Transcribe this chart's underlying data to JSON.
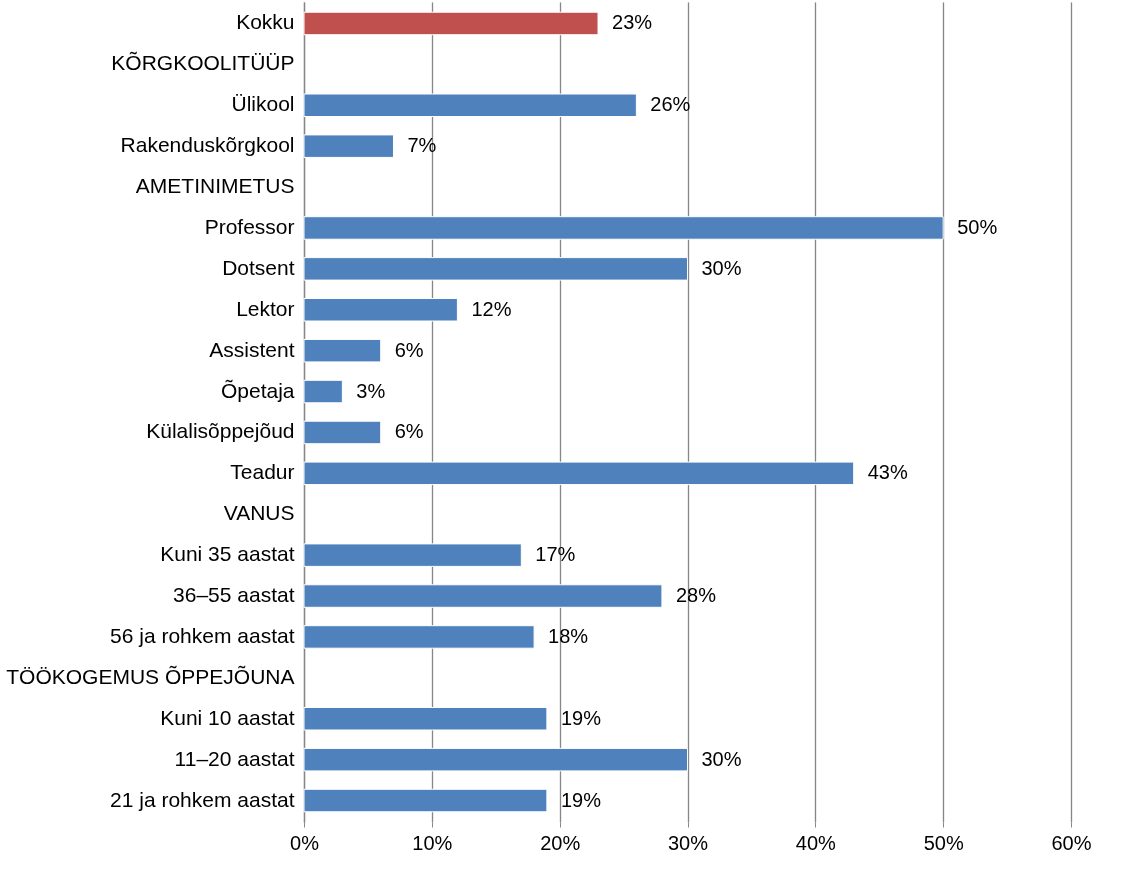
{
  "chart_data": {
    "type": "bar",
    "orientation": "horizontal",
    "categories": [
      "Kokku",
      "KÕRGKOOLITÜÜP",
      "Ülikool",
      "Rakenduskõrgkool",
      "AMETINIMETUS",
      "Professor",
      "Dotsent",
      "Lektor",
      "Assistent",
      "Õpetaja",
      "Külalisõppejõud",
      "Teadur",
      "VANUS",
      "Kuni 35 aastat",
      "36–55 aastat",
      "56 ja rohkem aastat",
      "TÖÖKOGEMUS ÕPPEJÕUNA",
      "Kuni 10 aastat",
      "11–20 aastat",
      "21 ja rohkem aastat"
    ],
    "values": [
      23,
      null,
      26,
      7,
      null,
      50,
      30,
      12,
      6,
      3,
      6,
      43,
      null,
      17,
      28,
      18,
      null,
      19,
      30,
      19
    ],
    "value_labels": [
      "23%",
      null,
      "26%",
      "7%",
      null,
      "50%",
      "30%",
      "12%",
      "6%",
      "3%",
      "6%",
      "43%",
      null,
      "17%",
      "28%",
      "18%",
      null,
      "19%",
      "30%",
      "19%"
    ],
    "colors": [
      "#c0504d",
      null,
      "#4f81bd",
      "#4f81bd",
      null,
      "#4f81bd",
      "#4f81bd",
      "#4f81bd",
      "#4f81bd",
      "#4f81bd",
      "#4f81bd",
      "#4f81bd",
      null,
      "#4f81bd",
      "#4f81bd",
      "#4f81bd",
      null,
      "#4f81bd",
      "#4f81bd",
      "#4f81bd"
    ],
    "xlim": [
      0,
      60
    ],
    "xticks": [
      {
        "value": 0,
        "label": "0%"
      },
      {
        "value": 10,
        "label": "10%"
      },
      {
        "value": 20,
        "label": "20%"
      },
      {
        "value": 30,
        "label": "30%"
      },
      {
        "value": 40,
        "label": "40%"
      },
      {
        "value": 50,
        "label": "50%"
      },
      {
        "value": 60,
        "label": "60%"
      }
    ],
    "grid": "x"
  }
}
